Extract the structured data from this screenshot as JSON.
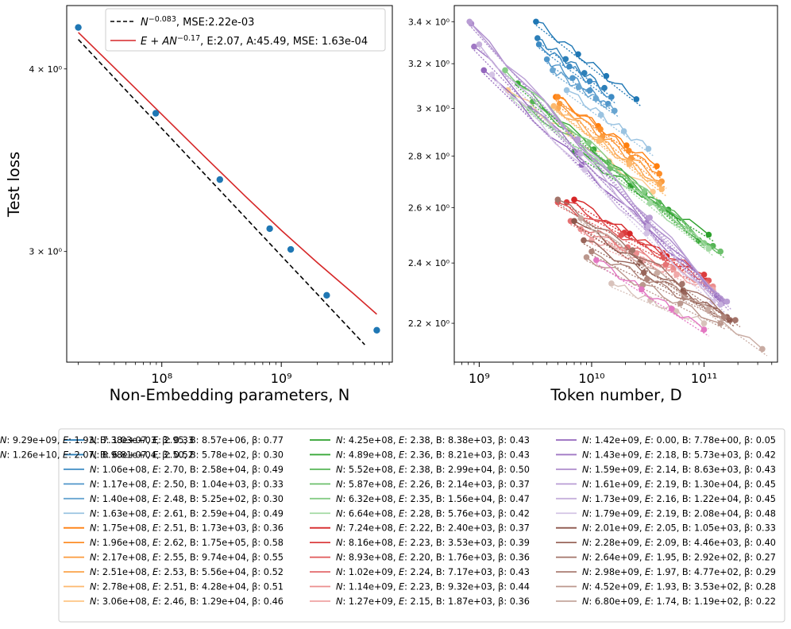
{
  "chart_data": [
    {
      "type": "line",
      "xscale": "log",
      "yscale": "log",
      "xlabel": "Non-Embedding parameters, N",
      "ylabel": "Test loss",
      "xlim": [
        16000000.0,
        8500000000.0
      ],
      "ylim": [
        2.52,
        4.42
      ],
      "xticks": [
        {
          "v": 100000000.0,
          "l": "10⁸"
        },
        {
          "v": 1000000000.0,
          "l": "10⁹"
        }
      ],
      "yticks": [
        {
          "v": 3,
          "l": "3 × 10⁰"
        },
        {
          "v": 4,
          "l": "4 × 10⁰"
        }
      ],
      "legend_position": "top-right",
      "points": {
        "color": "#1f77b4",
        "x": [
          20000000.0,
          89000000.0,
          306000000.0,
          800000000.0,
          1200000000.0,
          2400000000.0,
          6300000000.0
        ],
        "y": [
          4.27,
          3.73,
          3.36,
          3.11,
          3.01,
          2.8,
          2.65
        ]
      },
      "series": [
        {
          "name": "N^{-0.083}, MSE:2.22e-03",
          "formula": "N",
          "exp": "−0.083",
          "suffix": ", MSE:2.22e-03",
          "color": "#000000",
          "dash": true,
          "x": [
            20000000.0,
            5000000000.0
          ],
          "y": [
            4.19,
            2.59
          ]
        },
        {
          "name": "E+AN^{-0.17}, E:2.07, A:45.49, MSE: 1.63e-04",
          "formula": "E + AN",
          "exp": "−0.17",
          "suffix": ", E:2.07, A:45.49, MSE: 1.63e-04",
          "color": "#d62728",
          "dash": false,
          "x": [
            20000000.0,
            60000000.0,
            200000000.0,
            500000000.0,
            1000000000.0,
            2000000000.0,
            4000000000.0,
            6300000000.0
          ],
          "y": [
            4.237,
            3.88,
            3.521,
            3.273,
            3.102,
            2.948,
            2.808,
            2.718
          ]
        }
      ]
    },
    {
      "type": "line",
      "xscale": "log",
      "yscale": "log",
      "xlabel": "Token number, D",
      "ylabel": "",
      "xlim": [
        600000000.0,
        450000000000.0
      ],
      "ylim": [
        2.08,
        3.48
      ],
      "xticks": [
        {
          "v": 1000000000.0,
          "l": "10⁹"
        },
        {
          "v": 10000000000.0,
          "l": "10¹⁰"
        },
        {
          "v": 100000000000.0,
          "l": "10¹¹"
        }
      ],
      "yticks": [
        {
          "v": 2.2,
          "l": "2.2 × 10⁰"
        },
        {
          "v": 2.4,
          "l": "2.4 × 10⁰"
        },
        {
          "v": 2.6,
          "l": "2.6 × 10⁰"
        },
        {
          "v": 2.8,
          "l": "2.8 × 10⁰"
        },
        {
          "v": 3.0,
          "l": "3 × 10⁰"
        },
        {
          "v": 3.2,
          "l": "3.2 × 10⁰"
        },
        {
          "v": 3.4,
          "l": "3.4 × 10⁰"
        }
      ],
      "fit_series": [
        {
          "N": "7.38e+07",
          "E": "2.95",
          "B": "8.57e+06",
          "beta": "0.77",
          "color": "#1f77b4",
          "d": [
            3200000000.0,
            25000000000.0
          ],
          "loss": [
            3.4,
            3.04
          ]
        },
        {
          "N": "8.98e+07",
          "E": "2.50",
          "B": "5.78e+02",
          "beta": "0.30",
          "color": "#2c7fb8",
          "d": [
            3300000000.0,
            13000000000.0
          ],
          "loss": [
            3.32,
            3.09
          ]
        },
        {
          "N": "1.06e+08",
          "E": "2.70",
          "B": "2.58e+04",
          "beta": "0.49",
          "color": "#3d8bc4",
          "d": [
            3400000000.0,
            15000000000.0
          ],
          "loss": [
            3.29,
            3.05
          ]
        },
        {
          "N": "1.17e+08",
          "E": "2.50",
          "B": "1.04e+03",
          "beta": "0.33",
          "color": "#5096ca",
          "d": [
            4000000000.0,
            14000000000.0
          ],
          "loss": [
            3.22,
            3.02
          ]
        },
        {
          "N": "1.40e+08",
          "E": "2.48",
          "B": "5.25e+02",
          "beta": "0.30",
          "color": "#68a5d1",
          "d": [
            4500000000.0,
            16000000000.0
          ],
          "loss": [
            3.17,
            2.99
          ]
        },
        {
          "N": "1.63e+08",
          "E": "2.61",
          "B": "2.59e+04",
          "beta": "0.49",
          "color": "#9ac3e1",
          "d": [
            6000000000.0,
            32000000000.0
          ],
          "loss": [
            3.08,
            2.83
          ]
        },
        {
          "N": "1.75e+08",
          "E": "2.51",
          "B": "1.73e+03",
          "beta": "0.36",
          "color": "#ff7f0e",
          "d": [
            4800000000.0,
            38000000000.0
          ],
          "loss": [
            3.05,
            2.76
          ]
        },
        {
          "N": "1.96e+08",
          "E": "2.62",
          "B": "1.75e+05",
          "beta": "0.58",
          "color": "#fd8d27",
          "d": [
            5000000000.0,
            40000000000.0
          ],
          "loss": [
            3.05,
            2.73
          ]
        },
        {
          "N": "2.17e+08",
          "E": "2.55",
          "B": "9.74e+04",
          "beta": "0.55",
          "color": "#fb9a3c",
          "d": [
            5200000000.0,
            42000000000.0
          ],
          "loss": [
            3.02,
            2.7
          ]
        },
        {
          "N": "2.51e+08",
          "E": "2.53",
          "B": "5.56e+04",
          "beta": "0.52",
          "color": "#fba954",
          "d": [
            5000000000.0,
            40000000000.0
          ],
          "loss": [
            3.0,
            2.69
          ]
        },
        {
          "N": "2.78e+08",
          "E": "2.51",
          "B": "4.28e+04",
          "beta": "0.51",
          "color": "#fdb96e",
          "d": [
            4600000000.0,
            42000000000.0
          ],
          "loss": [
            3.01,
            2.67
          ]
        },
        {
          "N": "3.06e+08",
          "E": "2.46",
          "B": "1.29e+04",
          "beta": "0.46",
          "color": "#fec98c",
          "d": [
            1800000000.0,
            35000000000.0
          ],
          "loss": [
            3.08,
            2.66
          ]
        },
        {
          "N": "4.25e+08",
          "E": "2.38",
          "B": "8.38e+03",
          "beta": "0.43",
          "color": "#2ca02c",
          "d": [
            7000000000.0,
            110000000000.0
          ],
          "loss": [
            2.82,
            2.5
          ]
        },
        {
          "N": "4.89e+08",
          "E": "2.36",
          "B": "8.21e+03",
          "beta": "0.43",
          "color": "#39a839",
          "d": [
            2200000000.0,
            90000000000.0
          ],
          "loss": [
            3.11,
            2.48
          ]
        },
        {
          "N": "5.52e+08",
          "E": "2.38",
          "B": "2.99e+04",
          "beta": "0.50",
          "color": "#55b555",
          "d": [
            3000000000.0,
            120000000000.0
          ],
          "loss": [
            3.03,
            2.46
          ]
        },
        {
          "N": "5.87e+08",
          "E": "2.26",
          "B": "2.14e+03",
          "beta": "0.37",
          "color": "#6cc06c",
          "d": [
            2800000000.0,
            140000000000.0
          ],
          "loss": [
            3.0,
            2.44
          ]
        },
        {
          "N": "6.32e+08",
          "E": "2.35",
          "B": "1.56e+04",
          "beta": "0.47",
          "color": "#85cc85",
          "d": [
            1700000000.0,
            100000000000.0
          ],
          "loss": [
            3.17,
            2.47
          ]
        },
        {
          "N": "6.64e+08",
          "E": "2.28",
          "B": "5.76e+03",
          "beta": "0.42",
          "color": "#a3d9a3",
          "d": [
            2000000000.0,
            110000000000.0
          ],
          "loss": [
            3.05,
            2.45
          ]
        },
        {
          "N": "7.24e+08",
          "E": "2.22",
          "B": "2.40e+03",
          "beta": "0.37",
          "color": "#d62728",
          "d": [
            7000000000.0,
            105000000000.0
          ],
          "loss": [
            2.63,
            2.34
          ]
        },
        {
          "N": "8.16e+08",
          "E": "2.23",
          "B": "3.53e+03",
          "beta": "0.39",
          "color": "#dc3d3e",
          "d": [
            6000000000.0,
            100000000000.0
          ],
          "loss": [
            2.62,
            2.36
          ]
        },
        {
          "N": "8.93e+08",
          "E": "2.20",
          "B": "1.76e+03",
          "beta": "0.36",
          "color": "#e05859",
          "d": [
            5000000000.0,
            110000000000.0
          ],
          "loss": [
            2.62,
            2.34
          ]
        },
        {
          "N": "1.02e+09",
          "E": "2.24",
          "B": "7.17e+03",
          "beta": "0.43",
          "color": "#e57374",
          "d": [
            6500000000.0,
            105000000000.0
          ],
          "loss": [
            2.55,
            2.33
          ]
        },
        {
          "N": "1.14e+09",
          "E": "2.23",
          "B": "9.32e+03",
          "beta": "0.44",
          "color": "#eb8e8e",
          "d": [
            8000000000.0,
            120000000000.0
          ],
          "loss": [
            2.52,
            2.32
          ]
        },
        {
          "N": "1.27e+09",
          "E": "2.15",
          "B": "1.87e+03",
          "beta": "0.36",
          "color": "#f0a8a8",
          "d": [
            10000000000.0,
            120000000000.0
          ],
          "loss": [
            2.48,
            2.31
          ]
        },
        {
          "N": "1.42e+09",
          "E": "0.00",
          "B": "7.78e+00",
          "beta": "0.05",
          "color": "#9467bd",
          "d": [
            1100000000.0,
            130000000000.0
          ],
          "loss": [
            3.17,
            2.29
          ]
        },
        {
          "N": "1.43e+09",
          "E": "2.18",
          "B": "5.73e+03",
          "beta": "0.42",
          "color": "#a078c4",
          "d": [
            900000000.0,
            140000000000.0
          ],
          "loss": [
            3.28,
            2.28
          ]
        },
        {
          "N": "1.59e+09",
          "E": "2.14",
          "B": "8.63e+03",
          "beta": "0.43",
          "color": "#ad8ccc",
          "d": [
            850000000.0,
            150000000000.0
          ],
          "loss": [
            3.39,
            2.27
          ]
        },
        {
          "N": "1.61e+09",
          "E": "2.19",
          "B": "1.30e+04",
          "beta": "0.45",
          "color": "#b99dd4",
          "d": [
            820000000.0,
            160000000000.0
          ],
          "loss": [
            3.4,
            2.27
          ]
        },
        {
          "N": "1.73e+09",
          "E": "2.16",
          "B": "1.22e+04",
          "beta": "0.45",
          "color": "#c6b0dc",
          "d": [
            1000000000.0,
            140000000000.0
          ],
          "loss": [
            3.29,
            2.26
          ]
        },
        {
          "N": "1.79e+09",
          "E": "2.19",
          "B": "2.08e+04",
          "beta": "0.48",
          "color": "#d4c3e5",
          "d": [
            1300000000.0,
            120000000000.0
          ],
          "loss": [
            3.15,
            2.27
          ]
        },
        {
          "N": "2.01e+09",
          "E": "2.05",
          "B": "1.05e+03",
          "beta": "0.33",
          "color": "#8c564b",
          "d": [
            7000000000.0,
            170000000000.0
          ],
          "loss": [
            2.55,
            2.21
          ]
        },
        {
          "N": "2.28e+09",
          "E": "2.09",
          "B": "4.46e+03",
          "beta": "0.40",
          "color": "#98655a",
          "d": [
            8500000000.0,
            160000000000.0
          ],
          "loss": [
            2.48,
            2.22
          ]
        },
        {
          "N": "2.64e+09",
          "E": "1.95",
          "B": "2.92e+02",
          "beta": "0.27",
          "color": "#a3746a",
          "d": [
            5000000000.0,
            190000000000.0
          ],
          "loss": [
            2.63,
            2.21
          ]
        },
        {
          "N": "2.98e+09",
          "E": "1.97",
          "B": "4.77e+02",
          "beta": "0.29",
          "color": "#af857b",
          "d": [
            10000000000.0,
            150000000000.0
          ],
          "loss": [
            2.44,
            2.22
          ]
        },
        {
          "N": "4.52e+09",
          "E": "1.93",
          "B": "3.53e+02",
          "beta": "0.28",
          "color": "#bb978d",
          "d": [
            9000000000.0,
            140000000000.0
          ],
          "loss": [
            2.42,
            2.2
          ]
        },
        {
          "N": "6.80e+09",
          "E": "1.74",
          "B": "1.19e+02",
          "beta": "0.22",
          "color": "#c8aba2",
          "d": [
            8000000000.0,
            330000000000.0
          ],
          "loss": [
            2.56,
            2.12
          ]
        },
        {
          "N": "9.29e+09",
          "E": "1.93",
          "B": "1.03e+03",
          "beta": "0.33",
          "color": "#d8c2bb",
          "d": [
            15000000000.0,
            100000000000.0
          ],
          "loss": [
            2.33,
            2.2
          ]
        },
        {
          "N": "1.26e+10",
          "E": "2.07",
          "B": "6.81e+04",
          "beta": "0.52",
          "color": "#e377c2",
          "d": [
            11000000000.0,
            100000000000.0
          ],
          "loss": [
            2.41,
            2.18
          ]
        }
      ]
    }
  ]
}
